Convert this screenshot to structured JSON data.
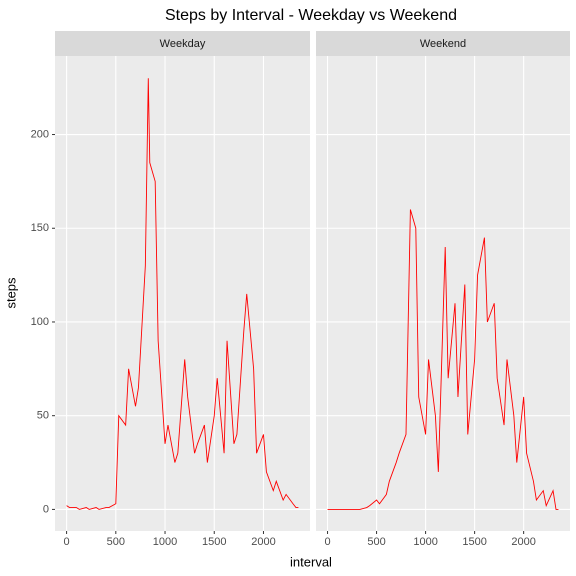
{
  "chart_data": {
    "type": "line",
    "title": "Steps by Interval - Weekday vs Weekend",
    "x_label": "interval",
    "y_label": "steps",
    "facet": true,
    "x": [
      0,
      30,
      100,
      130,
      200,
      230,
      300,
      330,
      400,
      430,
      500,
      530,
      600,
      630,
      700,
      730,
      800,
      830,
      845,
      900,
      930,
      1000,
      1030,
      1100,
      1130,
      1200,
      1230,
      1300,
      1330,
      1400,
      1430,
      1500,
      1530,
      1600,
      1630,
      1700,
      1730,
      1800,
      1830,
      1900,
      1930,
      2000,
      2030,
      2100,
      2130,
      2200,
      2230,
      2300,
      2330,
      2355
    ],
    "series": [
      {
        "name": "Weekday",
        "color": "#ff0000",
        "values": [
          2,
          1,
          1,
          0,
          1,
          0,
          1,
          0,
          1,
          1,
          3,
          50,
          45,
          75,
          55,
          65,
          130,
          230,
          185,
          175,
          90,
          35,
          45,
          25,
          30,
          80,
          60,
          30,
          35,
          45,
          25,
          50,
          70,
          30,
          90,
          35,
          40,
          95,
          115,
          75,
          30,
          40,
          20,
          10,
          15,
          5,
          8,
          3,
          1,
          1
        ]
      },
      {
        "name": "Weekend",
        "color": "#ff0000",
        "values": [
          0,
          0,
          0,
          0,
          0,
          0,
          0,
          0,
          1,
          2,
          5,
          3,
          8,
          15,
          25,
          30,
          40,
          120,
          160,
          150,
          60,
          40,
          80,
          50,
          20,
          140,
          70,
          110,
          60,
          120,
          40,
          80,
          125,
          145,
          100,
          110,
          70,
          45,
          80,
          50,
          25,
          60,
          30,
          15,
          5,
          10,
          2,
          10,
          0,
          0
        ]
      }
    ],
    "xlim": [
      -117.75,
      2472.75
    ],
    "xticks": [
      0,
      500,
      1000,
      1500,
      2000
    ],
    "ylim": [
      -11.52,
      241.9
    ],
    "yticks": [
      0,
      50,
      100,
      150,
      200
    ],
    "grid": true
  }
}
